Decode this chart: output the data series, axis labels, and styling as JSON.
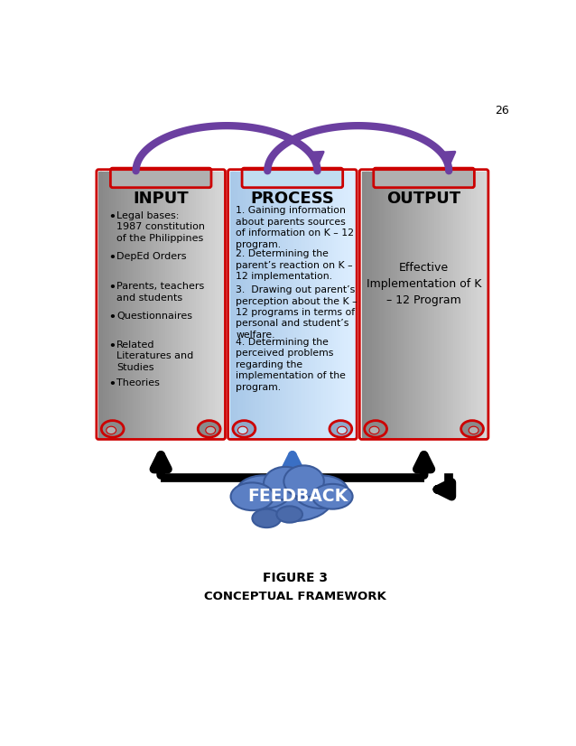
{
  "page_number": "26",
  "title": "FIGURE 3",
  "subtitle": "CONCEPTUAL FRAMEWORK",
  "input_title": "INPUT",
  "input_items": [
    "Legal bases:\n1987 constitution\nof the Philippines",
    "DepEd Orders",
    "Parents, teachers\nand students",
    "Questionnaires",
    "Related\nLiteratures and\nStudies",
    "Theories"
  ],
  "process_title": "PROCESS",
  "process_items": [
    "1. Gaining information\nabout parents sources\nof information on K – 12\nprogram.",
    "2. Determining the\nparent’s reaction on K –\n12 implementation.",
    "3.  Drawing out parent’s\nperception about the K –\n12 programs in terms of\npersonal and student’s\nwelfare.",
    "4. Determining the\nperceived problems\nregarding the\nimplementation of the\nprogram."
  ],
  "output_title": "OUTPUT",
  "output_text": "Effective\nImplementation of K\n– 12 Program",
  "feedback_text": "FEEDBACK",
  "bg_color": "#ffffff",
  "border_color": "#cc0000",
  "arrow_purple": "#6b3fa0",
  "arrow_black": "#000000",
  "arrow_blue": "#3a6fc4",
  "cloud_color": "#5b7fc4",
  "cloud_dark": "#3a5a9a",
  "cloud_bottom": "#4a6aaa",
  "grad_gray_left": "#888888",
  "grad_gray_right": "#d8d8d8",
  "grad_blue_left": "#a8c8e8",
  "grad_blue_right": "#ddeeff",
  "scroll_top_gray": "#b0b0b0",
  "scroll_top_blue": "#c0ddf0",
  "scroll_curl_gray": "#8a8a8a",
  "scroll_curl_blue": "#90a8c8"
}
